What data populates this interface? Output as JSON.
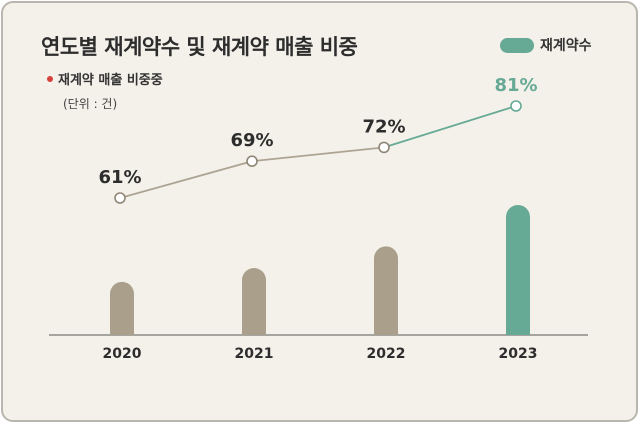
{
  "title": "연도별 재계약수 및 재계약 매출 비중",
  "unit": "(단위 : 건)",
  "legend": {
    "line": "재계약 매출 비중중",
    "bar": "재계약수"
  },
  "colors": {
    "bar": "#a99f8b",
    "bar_highlight": "#66aa96",
    "line": "#ada392",
    "line_highlight": "#66aa96",
    "legend_dot": "#d7413b",
    "axis": "#8c8a84",
    "label": "#2d2d2d"
  },
  "chart_data": {
    "type": "bar",
    "categories": [
      "2020",
      "2021",
      "2022",
      "2023"
    ],
    "series": [
      {
        "name": "재계약수",
        "type": "bar",
        "values": [
          54,
          68,
          90,
          132
        ]
      },
      {
        "name": "재계약 매출 비중중",
        "type": "line",
        "values": [
          61,
          69,
          72,
          81
        ],
        "labels": [
          "61%",
          "69%",
          "72%",
          "81%"
        ]
      }
    ],
    "highlight_index": 3,
    "grid": false
  }
}
